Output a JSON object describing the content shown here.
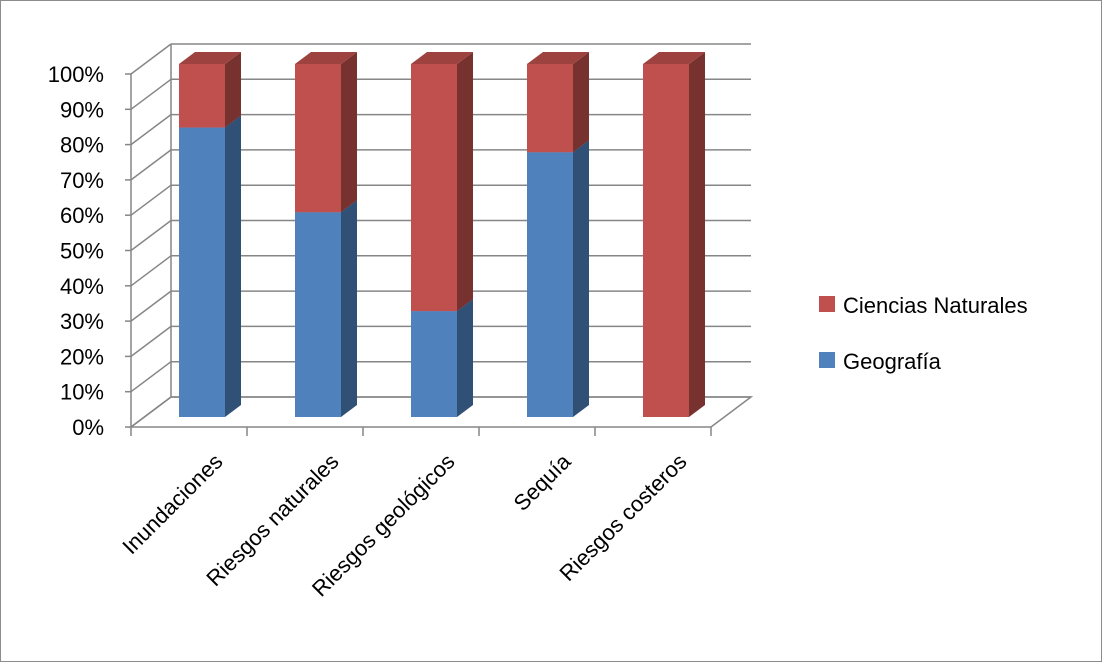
{
  "chart_data": {
    "type": "bar",
    "stacked": true,
    "percent_stacked": true,
    "three_d": true,
    "categories": [
      "Inundaciones",
      "Riesgos naturales",
      "Riesgos geológicos",
      "Sequía",
      "Riesgos costeros"
    ],
    "series": [
      {
        "name": "Geografía",
        "color": "#4f81bd",
        "values": [
          82,
          58,
          30,
          75,
          0
        ]
      },
      {
        "name": "Ciencias Naturales",
        "color": "#c0504d",
        "values": [
          18,
          42,
          70,
          25,
          100
        ]
      }
    ],
    "ylim": [
      0,
      100
    ],
    "yticks": [
      "0%",
      "10%",
      "20%",
      "30%",
      "40%",
      "50%",
      "60%",
      "70%",
      "80%",
      "90%",
      "100%"
    ],
    "grid": true,
    "legend": "right",
    "legend_order": [
      "Ciencias Naturales",
      "Geografía"
    ]
  }
}
